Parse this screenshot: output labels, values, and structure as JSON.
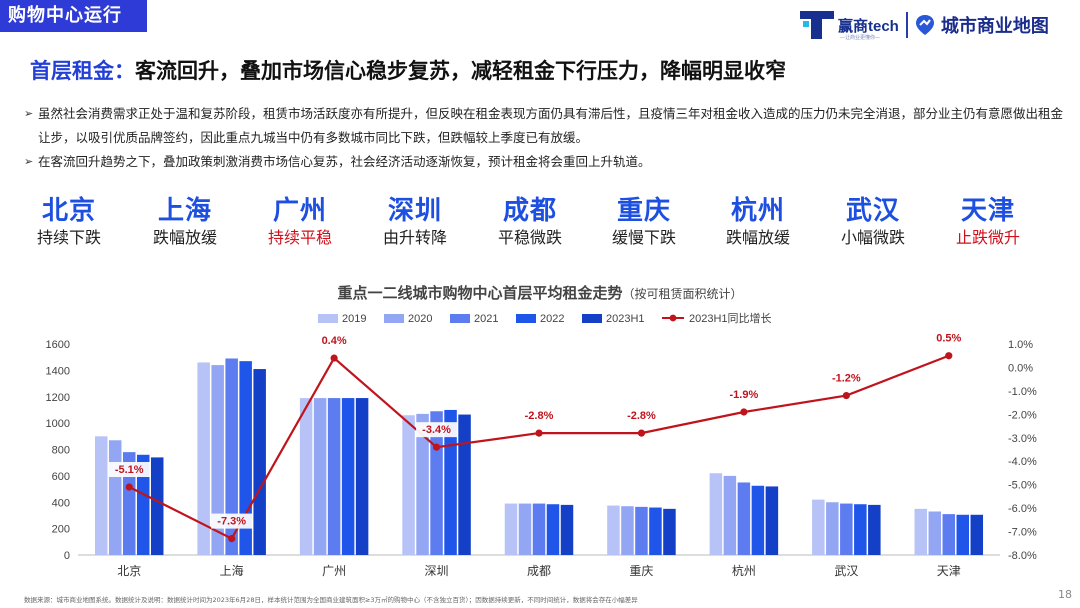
{
  "section_tag": "购物中心运行",
  "logos": {
    "brand": "赢商tech",
    "brand_sub": "—让商业更懂你—",
    "product": "城市商业地图"
  },
  "headline": {
    "highlight": "首层租金：",
    "text": "客流回升，叠加市场信心稳步复苏，减轻租金下行压力，降幅明显收窄"
  },
  "bullets": [
    "虽然社会消费需求正处于温和复苏阶段，租赁市场活跃度亦有所提升，但反映在租金表现方面仍具有滞后性，且疫情三年对租金收入造成的压力仍未完全消退，部分业主仍有意愿做出租金让步，以吸引优质品牌签约，因此重点九城当中仍有多数城市同比下跌，但跌幅较上季度已有放缓。",
    "在客流回升趋势之下，叠加政策刺激消费市场信心复苏，社会经济活动逐渐恢复，预计租金将会重回上升轨道。"
  ],
  "cities": [
    {
      "name": "北京",
      "trend": "持续下跌",
      "highlight": false
    },
    {
      "name": "上海",
      "trend": "跌幅放缓",
      "highlight": false
    },
    {
      "name": "广州",
      "trend": "持续平稳",
      "highlight": true
    },
    {
      "name": "深圳",
      "trend": "由升转降",
      "highlight": false
    },
    {
      "name": "成都",
      "trend": "平稳微跌",
      "highlight": false
    },
    {
      "name": "重庆",
      "trend": "缓慢下跌",
      "highlight": false
    },
    {
      "name": "杭州",
      "trend": "跌幅放缓",
      "highlight": false
    },
    {
      "name": "武汉",
      "trend": "小幅微跌",
      "highlight": false
    },
    {
      "name": "天津",
      "trend": "止跌微升",
      "highlight": true
    }
  ],
  "chart_data": {
    "type": "bar",
    "title": "重点一二线城市购物中心首层平均租金走势",
    "title_note": "（按可租赁面积统计）",
    "categories": [
      "北京",
      "上海",
      "广州",
      "深圳",
      "成都",
      "重庆",
      "杭州",
      "武汉",
      "天津"
    ],
    "series": [
      {
        "name": "2019",
        "color": "#b7c3f7",
        "values": [
          900,
          1460,
          1190,
          1060,
          390,
          375,
          620,
          420,
          350
        ]
      },
      {
        "name": "2020",
        "color": "#93a6f3",
        "values": [
          870,
          1440,
          1190,
          1070,
          390,
          370,
          600,
          400,
          330
        ]
      },
      {
        "name": "2021",
        "color": "#5d7cf0",
        "values": [
          780,
          1490,
          1190,
          1090,
          390,
          365,
          550,
          390,
          310
        ]
      },
      {
        "name": "2022",
        "color": "#1f55e8",
        "values": [
          760,
          1470,
          1190,
          1100,
          385,
          360,
          525,
          385,
          305
        ]
      },
      {
        "name": "2023H1",
        "color": "#1440c8",
        "values": [
          740,
          1410,
          1190,
          1065,
          380,
          350,
          520,
          380,
          305
        ]
      }
    ],
    "line_series": {
      "name": "2023H1同比增长",
      "color": "#c0141c",
      "values": [
        -5.1,
        -7.3,
        0.4,
        -3.4,
        -2.8,
        -2.8,
        -1.9,
        -1.2,
        0.5
      ],
      "labels": [
        "-5.1%",
        "-7.3%",
        "0.4%",
        "-3.4%",
        "-2.8%",
        "-2.8%",
        "-1.9%",
        "-1.2%",
        "0.5%"
      ]
    },
    "ylim": [
      0,
      1600
    ],
    "yticks": [
      0,
      200,
      400,
      600,
      800,
      1000,
      1200,
      1400,
      1600
    ],
    "y2lim": [
      -8.0,
      1.0
    ],
    "y2ticks": [
      "1.0%",
      "0.0%",
      "-1.0%",
      "-2.0%",
      "-3.0%",
      "-4.0%",
      "-5.0%",
      "-6.0%",
      "-7.0%",
      "-8.0%"
    ],
    "legend_position": "top",
    "grid": false
  },
  "footer": "数据来源：城市商业地图系统。数据统计及说明：数据统计时间为2023年6月28日，样本统计范围为全国商业建筑面积≥3万㎡的购物中心（不含独立百货）；因数据持续更新，不同时间统计，数据将会存在小幅差异",
  "page_number": "18"
}
